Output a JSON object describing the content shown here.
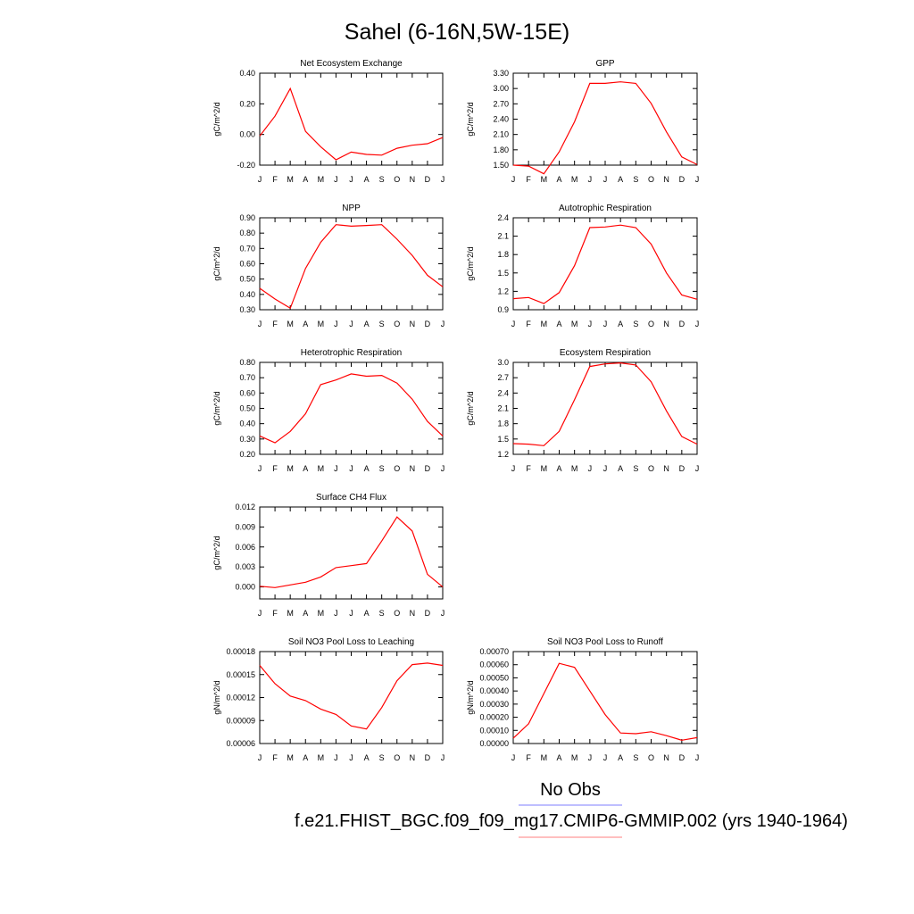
{
  "title": "Sahel (6-16N,5W-15E)",
  "months": [
    "J",
    "F",
    "M",
    "A",
    "M",
    "J",
    "J",
    "A",
    "S",
    "O",
    "N",
    "D",
    "J"
  ],
  "chart_data": [
    {
      "type": "line",
      "title": "Net Ecosystem Exchange",
      "ylabel": "gC/m^2/d",
      "ylim": [
        -0.2,
        0.4
      ],
      "yticks": [
        "0.40",
        "0.20",
        "0.00",
        "-0.20"
      ],
      "ytick_values": [
        0.4,
        0.2,
        0.0,
        -0.2
      ],
      "color": "#ff0000",
      "values": [
        -0.01,
        0.12,
        0.3,
        0.02,
        -0.08,
        -0.165,
        -0.115,
        -0.13,
        -0.135,
        -0.09,
        -0.07,
        -0.06,
        -0.02
      ]
    },
    {
      "type": "line",
      "title": "GPP",
      "ylabel": "gC/m^2/d",
      "ylim": [
        1.5,
        3.3
      ],
      "yticks": [
        "3.30",
        "3.00",
        "2.70",
        "2.40",
        "2.10",
        "1.80",
        "1.50"
      ],
      "ytick_values": [
        3.3,
        3.0,
        2.7,
        2.4,
        2.1,
        1.8,
        1.5
      ],
      "color": "#ff0000",
      "values": [
        1.5,
        1.48,
        1.33,
        1.76,
        2.35,
        3.1,
        3.1,
        3.13,
        3.1,
        2.71,
        2.15,
        1.66,
        1.51
      ]
    },
    {
      "type": "line",
      "title": "NPP",
      "ylabel": "gC/m^2/d",
      "ylim": [
        0.3,
        0.9
      ],
      "yticks": [
        "0.90",
        "0.80",
        "0.70",
        "0.60",
        "0.50",
        "0.40",
        "0.30"
      ],
      "ytick_values": [
        0.9,
        0.8,
        0.7,
        0.6,
        0.5,
        0.4,
        0.3
      ],
      "color": "#ff0000",
      "values": [
        0.44,
        0.37,
        0.31,
        0.57,
        0.74,
        0.855,
        0.845,
        0.85,
        0.855,
        0.76,
        0.655,
        0.525,
        0.45
      ]
    },
    {
      "type": "line",
      "title": "Autotrophic Respiration",
      "ylabel": "gC/m^2/d",
      "ylim": [
        0.9,
        2.4
      ],
      "yticks": [
        "2.4",
        "2.1",
        "1.8",
        "1.5",
        "1.2",
        "0.9"
      ],
      "ytick_values": [
        2.4,
        2.1,
        1.8,
        1.5,
        1.2,
        0.9
      ],
      "color": "#ff0000",
      "values": [
        1.08,
        1.1,
        1.0,
        1.18,
        1.62,
        2.24,
        2.25,
        2.28,
        2.24,
        1.97,
        1.5,
        1.14,
        1.07
      ]
    },
    {
      "type": "line",
      "title": "Heterotrophic Respiration",
      "ylabel": "gC/m^2/d",
      "ylim": [
        0.2,
        0.8
      ],
      "yticks": [
        "0.80",
        "0.70",
        "0.60",
        "0.50",
        "0.40",
        "0.30",
        "0.20"
      ],
      "ytick_values": [
        0.8,
        0.7,
        0.6,
        0.5,
        0.4,
        0.3,
        0.2
      ],
      "color": "#ff0000",
      "values": [
        0.32,
        0.275,
        0.35,
        0.465,
        0.655,
        0.685,
        0.725,
        0.71,
        0.715,
        0.665,
        0.56,
        0.415,
        0.32
      ]
    },
    {
      "type": "line",
      "title": "Ecosystem Respiration",
      "ylabel": "gC/m^2/d",
      "ylim": [
        1.2,
        3.0
      ],
      "yticks": [
        "3.0",
        "2.7",
        "2.4",
        "2.1",
        "1.8",
        "1.5",
        "1.2"
      ],
      "ytick_values": [
        3.0,
        2.7,
        2.4,
        2.1,
        1.8,
        1.5,
        1.2
      ],
      "color": "#ff0000",
      "values": [
        1.41,
        1.4,
        1.37,
        1.65,
        2.27,
        2.92,
        2.97,
        2.99,
        2.95,
        2.62,
        2.05,
        1.55,
        1.4
      ]
    },
    {
      "type": "line",
      "title": "Surface CH4 Flux",
      "ylabel": "gC/m^2/d",
      "ylim": [
        -0.0018,
        0.012
      ],
      "yticks": [
        "0.012",
        "0.009",
        "0.006",
        "0.003",
        "0.000"
      ],
      "ytick_values": [
        0.012,
        0.009,
        0.006,
        0.003,
        0.0
      ],
      "color": "#ff0000",
      "values": [
        0.0001,
        -0.0001,
        0.0003,
        0.0007,
        0.0015,
        0.0029,
        0.0032,
        0.0035,
        0.0069,
        0.0105,
        0.0084,
        0.0019,
        0.0
      ]
    },
    {
      "type": "line",
      "title": "Soil NO3 Pool Loss to Leaching",
      "ylabel": "gN/m^2/d",
      "ylim": [
        6e-05,
        0.00018
      ],
      "yticks": [
        "0.00018",
        "0.00015",
        "0.00012",
        "0.00009",
        "0.00006"
      ],
      "ytick_values": [
        0.00018,
        0.00015,
        0.00012,
        9e-05,
        6e-05
      ],
      "color": "#ff0000",
      "values": [
        0.000162,
        0.000138,
        0.000122,
        0.000116,
        0.000105,
        9.8e-05,
        8.3e-05,
        7.9e-05,
        0.000107,
        0.000142,
        0.000163,
        0.000165,
        0.000162
      ]
    },
    {
      "type": "line",
      "title": "Soil NO3 Pool Loss to Runoff",
      "ylabel": "gN/m^2/d",
      "ylim": [
        0.0,
        0.0007
      ],
      "yticks": [
        "0.00070",
        "0.00060",
        "0.00050",
        "0.00040",
        "0.00030",
        "0.00020",
        "0.00010",
        "0.00000"
      ],
      "ytick_values": [
        0.0007,
        0.0006,
        0.0005,
        0.0004,
        0.0003,
        0.0002,
        0.0001,
        0.0
      ],
      "color": "#ff0000",
      "values": [
        4e-05,
        0.00015,
        0.00038,
        0.00061,
        0.00058,
        0.0004,
        0.00022,
        8e-05,
        7.5e-05,
        9e-05,
        6e-05,
        2.5e-05,
        4.5e-05
      ]
    }
  ],
  "legend": {
    "obs_label": "No Obs",
    "obs_color": "#7f7fff",
    "model_label": "f.e21.FHIST_BGC.f09_f09_mg17.CMIP6-GMMIP.002 (yrs 1940-1964)",
    "model_color": "#ff7f7f"
  }
}
